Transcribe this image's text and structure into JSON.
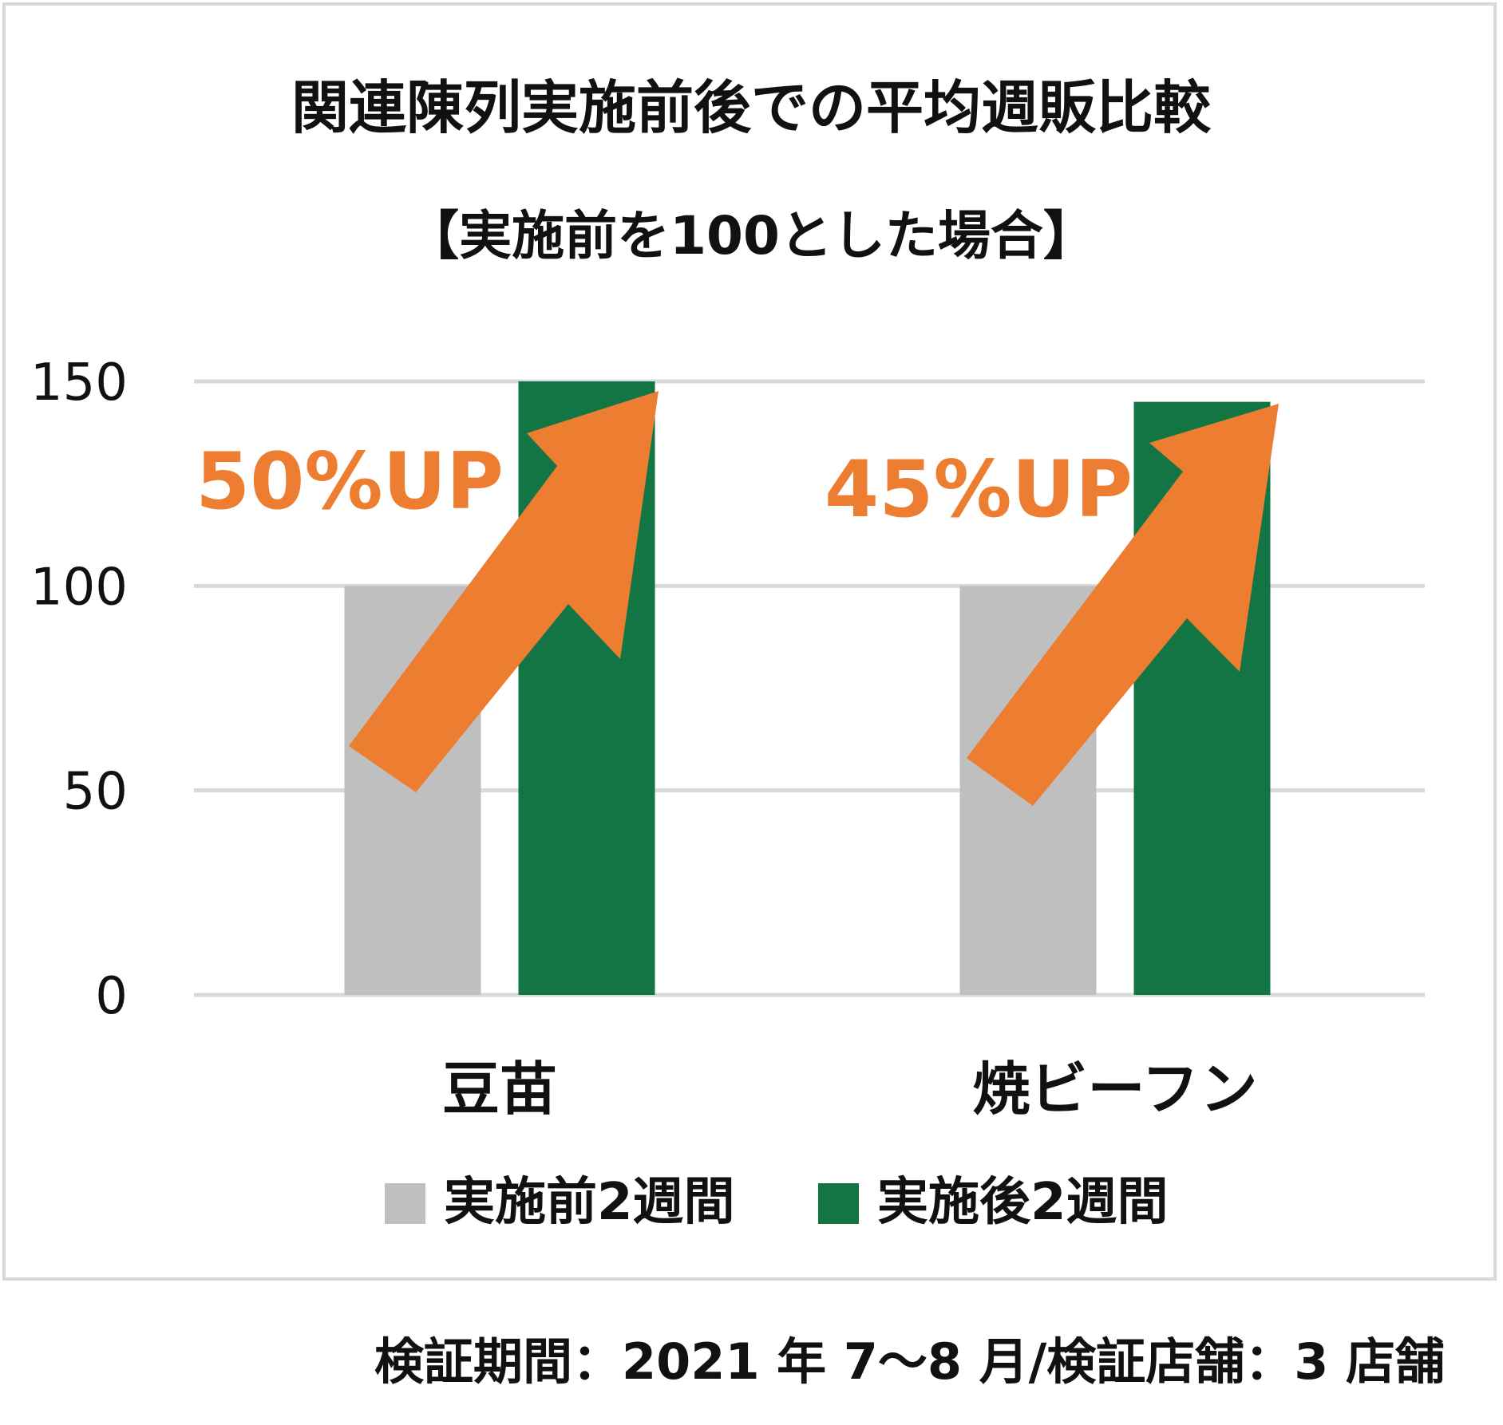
{
  "chart_data": {
    "type": "bar",
    "title": "関連陳列実施前後での平均週販比較",
    "subtitle": "【実施前を100とした場合】",
    "categories": [
      "豆苗",
      "焼ビーフン"
    ],
    "series": [
      {
        "name": "実施前2週間",
        "values": [
          100,
          100
        ],
        "color": "#bfbfbf"
      },
      {
        "name": "実施後2週間",
        "values": [
          150,
          145
        ],
        "color": "#137543"
      }
    ],
    "yticks": [
      "0",
      "50",
      "100",
      "150"
    ],
    "ylim": [
      0,
      150
    ],
    "grid": true,
    "legend_position": "bottom",
    "annotations": [
      {
        "text": "50%UP",
        "category": "豆苗"
      },
      {
        "text": "45%UP",
        "category": "焼ビーフン"
      }
    ],
    "annotation_color": "#ed7d31",
    "gridline_color": "#d9d9d9",
    "border_color": "#d9d9d9"
  },
  "footnote": "検証期間：2021 年 7～8 月/検証店舗：3 店舗"
}
